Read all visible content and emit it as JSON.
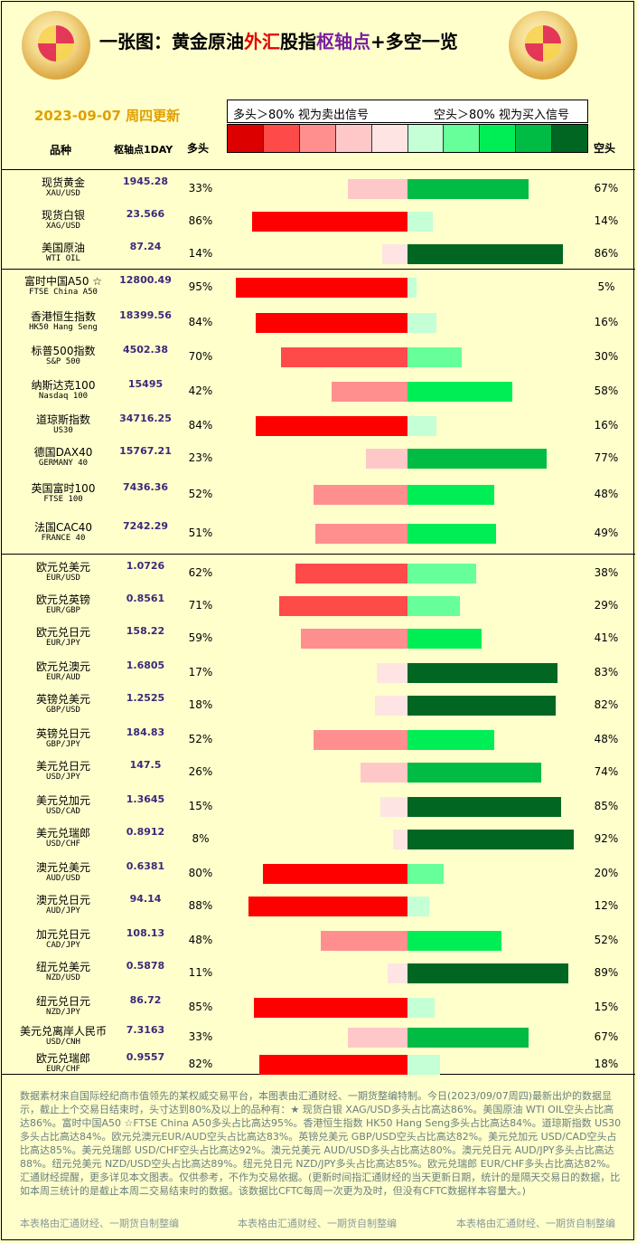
{
  "title": {
    "part1": "一张图：黄金原油",
    "part2": "外汇",
    "part3": "股指",
    "part4": "枢轴点",
    "part5": "+多空一览"
  },
  "date": "2023-09-07 周四更新",
  "legend": {
    "long_note": "多头＞80% 视为卖出信号",
    "short_note": "空头＞80% 视为买入信号"
  },
  "headers": {
    "name": "品种",
    "pivot": "枢轴点1DAY",
    "long": "多头",
    "short": "空头"
  },
  "colors": {
    "scale": [
      "#dd0000",
      "#ff4a4a",
      "#ff8f8f",
      "#ffc8c8",
      "#ffe4e4",
      "#c4ffd6",
      "#66ff99",
      "#00ee55",
      "#00bb44",
      "#006622"
    ],
    "long_bands": [
      "#ffe4e4",
      "#ffc8c8",
      "#ff8f8f",
      "#ff4a4a",
      "#ff0000"
    ],
    "short_bands": [
      "#c4ffd6",
      "#66ff99",
      "#00ee55",
      "#00bb44",
      "#006622"
    ]
  },
  "chart_data": {
    "type": "bar",
    "rows": [
      {
        "name": "现货黄金",
        "code": "XAU/USD",
        "pivot": "1945.28",
        "long": 33,
        "short": 67
      },
      {
        "name": "现货白银",
        "code": "XAG/USD",
        "pivot": "23.566",
        "long": 86,
        "short": 14
      },
      {
        "name": "美国原油",
        "code": "WTI OIL",
        "pivot": "87.24",
        "long": 14,
        "short": 86
      },
      {
        "name": "富时中国A50 ☆",
        "code": "FTSE China A50",
        "pivot": "12800.49",
        "long": 95,
        "short": 5
      },
      {
        "name": "香港恒生指数",
        "code": "HK50 Hang Seng",
        "pivot": "18399.56",
        "long": 84,
        "short": 16
      },
      {
        "name": "标普500指数",
        "code": "S&P 500",
        "pivot": "4502.38",
        "long": 70,
        "short": 30
      },
      {
        "name": "纳斯达克100",
        "code": "Nasdaq 100",
        "pivot": "15495",
        "long": 42,
        "short": 58
      },
      {
        "name": "道琼斯指数",
        "code": "US30",
        "pivot": "34716.25",
        "long": 84,
        "short": 16
      },
      {
        "name": "德国DAX40",
        "code": "GERMANY 40",
        "pivot": "15767.21",
        "long": 23,
        "short": 77
      },
      {
        "name": "英国富时100",
        "code": "FTSE 100",
        "pivot": "7436.36",
        "long": 52,
        "short": 48
      },
      {
        "name": "法国CAC40",
        "code": "FRANCE 40",
        "pivot": "7242.29",
        "long": 51,
        "short": 49
      },
      {
        "name": "欧元兑美元",
        "code": "EUR/USD",
        "pivot": "1.0726",
        "long": 62,
        "short": 38
      },
      {
        "name": "欧元兑英镑",
        "code": "EUR/GBP",
        "pivot": "0.8561",
        "long": 71,
        "short": 29
      },
      {
        "name": "欧元兑日元",
        "code": "EUR/JPY",
        "pivot": "158.22",
        "long": 59,
        "short": 41
      },
      {
        "name": "欧元兑澳元",
        "code": "EUR/AUD",
        "pivot": "1.6805",
        "long": 17,
        "short": 83
      },
      {
        "name": "英镑兑美元",
        "code": "GBP/USD",
        "pivot": "1.2525",
        "long": 18,
        "short": 82
      },
      {
        "name": "英镑兑日元",
        "code": "GBP/JPY",
        "pivot": "184.83",
        "long": 52,
        "short": 48
      },
      {
        "name": "美元兑日元",
        "code": "USD/JPY",
        "pivot": "147.5",
        "long": 26,
        "short": 74
      },
      {
        "name": "美元兑加元",
        "code": "USD/CAD",
        "pivot": "1.3645",
        "long": 15,
        "short": 85
      },
      {
        "name": "美元兑瑞郎",
        "code": "USD/CHF",
        "pivot": "0.8912",
        "long": 8,
        "short": 92
      },
      {
        "name": "澳元兑美元",
        "code": "AUD/USD",
        "pivot": "0.6381",
        "long": 80,
        "short": 20
      },
      {
        "name": "澳元兑日元",
        "code": "AUD/JPY",
        "pivot": "94.14",
        "long": 88,
        "short": 12
      },
      {
        "name": "加元兑日元",
        "code": "CAD/JPY",
        "pivot": "108.13",
        "long": 48,
        "short": 52
      },
      {
        "name": "纽元兑美元",
        "code": "NZD/USD",
        "pivot": "0.5878",
        "long": 11,
        "short": 89
      },
      {
        "name": "纽元兑日元",
        "code": "NZD/JPY",
        "pivot": "86.72",
        "long": 85,
        "short": 15
      },
      {
        "name": "美元兑离岸人民币",
        "code": "USD/CNH",
        "pivot": "7.3163",
        "long": 33,
        "short": 67
      },
      {
        "name": "欧元兑瑞郎",
        "code": "EUR/CHF",
        "pivot": "0.9557",
        "long": 82,
        "short": 18
      }
    ]
  },
  "footer": {
    "text": "数据素材来自国际经纪商市值领先的某权威交易平台，本图表由汇通财经、一期货整编特制。今日(2023/09/07周四)最新出炉的数据显示，截止上个交易日结束时，头寸达到80%及以上的品种有：★ 现货白银 XAG/USD多头占比高达86%。美国原油 WTI OIL空头占比高达86%。富时中国A50 ☆FTSE China A50多头占比高达95%。香港恒生指数 HK50 Hang Seng多头占比高达84%。道琼斯指数 US30多头占比高达84%。欧元兑澳元EUR/AUD空头占比高达83%。英镑兑美元 GBP/USD空头占比高达82%。美元兑加元 USD/CAD空头占比高达85%。美元兑瑞郎 USD/CHF空头占比高达92%。澳元兑美元 AUD/USD多头占比高达80%。澳元兑日元 AUD/JPY多头占比高达88%。纽元兑美元 NZD/USD空头占比高达89%。纽元兑日元 NZD/JPY多头占比高达85%。欧元兑瑞郎 EUR/CHF多头占比高达82%。汇通财经提醒，更多详见本文图表。仅供参考，不作为交易依据。(更新时间指汇通财经的当天更新日期，统计的是隔天交易日的数据，比如本周三统计的是截止本周二交易结束时的数据。该数据比CFTC每周一次更为及时，但没有CFTC数据样本容量大。)",
    "credit": "本表格由汇通财经、一期货自制整编"
  }
}
